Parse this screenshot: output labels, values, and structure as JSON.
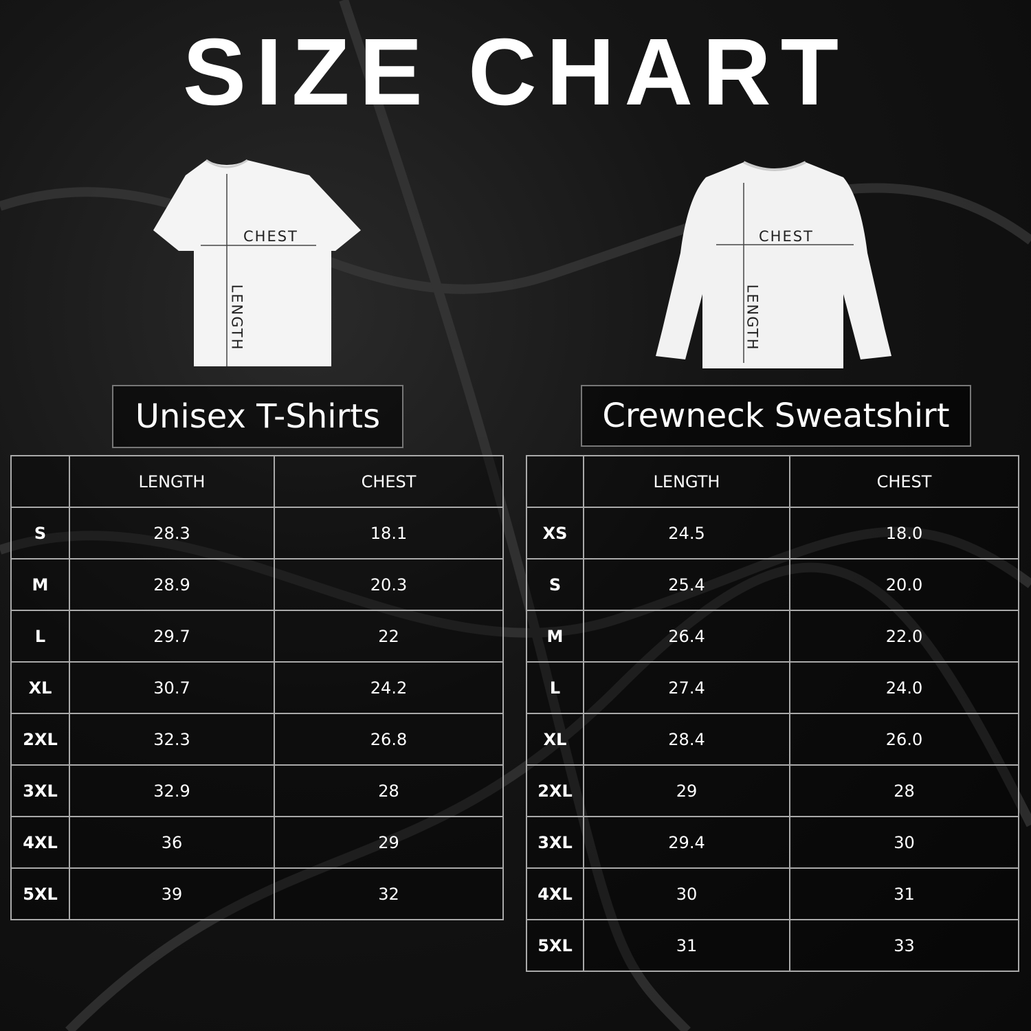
{
  "title": "SIZE CHART",
  "tshirt": {
    "name": "Unisex T-Shirts",
    "chest_label": "CHEST",
    "length_label": "LENGTH",
    "headers": [
      "",
      "LENGTH",
      "CHEST"
    ],
    "rows": [
      [
        "S",
        "28.3",
        "18.1"
      ],
      [
        "M",
        "28.9",
        "20.3"
      ],
      [
        "L",
        "29.7",
        "22"
      ],
      [
        "XL",
        "30.7",
        "24.2"
      ],
      [
        "2XL",
        "32.3",
        "26.8"
      ],
      [
        "3XL",
        "32.9",
        "28"
      ],
      [
        "4XL",
        "36",
        "29"
      ],
      [
        "5XL",
        "39",
        "32"
      ]
    ]
  },
  "sweatshirt": {
    "name": "Crewneck Sweatshirt",
    "chest_label": "CHEST",
    "length_label": "LENGTH",
    "headers": [
      "",
      "LENGTH",
      "CHEST"
    ],
    "rows": [
      [
        "XS",
        "24.5",
        "18.0"
      ],
      [
        "S",
        "25.4",
        "20.0"
      ],
      [
        "M",
        "26.4",
        "22.0"
      ],
      [
        "L",
        "27.4",
        "24.0"
      ],
      [
        "XL",
        "28.4",
        "26.0"
      ],
      [
        "2XL",
        "29",
        "28"
      ],
      [
        "3XL",
        "29.4",
        "30"
      ],
      [
        "4XL",
        "30",
        "31"
      ],
      [
        "5XL",
        "31",
        "33"
      ]
    ]
  }
}
